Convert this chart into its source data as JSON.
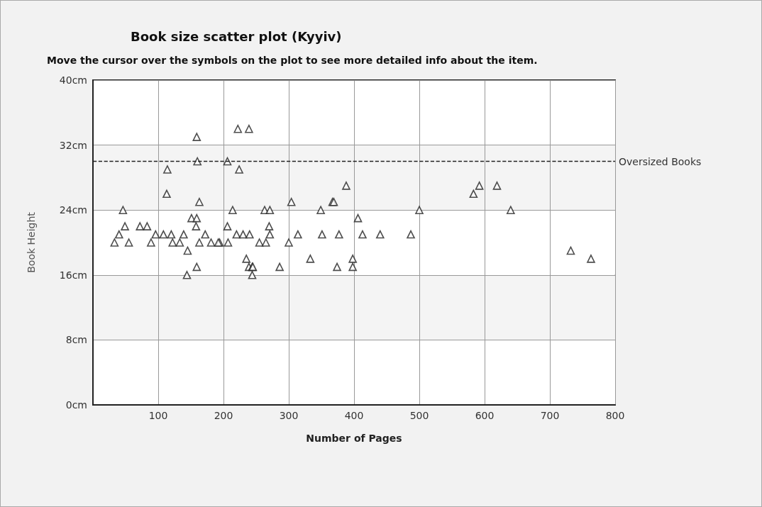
{
  "chart_data": {
    "type": "scatter",
    "title": "Book size scatter plot (Kyyiv)",
    "subtitle": "Move the cursor over the symbols on the plot to see more detailed info about the item.",
    "xlabel": "Number of Pages",
    "ylabel": "Book Height",
    "x": [
      33,
      40,
      46,
      49,
      55,
      72,
      83,
      89,
      96,
      108,
      113,
      114,
      120,
      122,
      133,
      139,
      144,
      145,
      151,
      159,
      158,
      159,
      160,
      163,
      159,
      163,
      172,
      181,
      194,
      192,
      207,
      206,
      206,
      214,
      220,
      222,
      224,
      230,
      235,
      239,
      239,
      240,
      244,
      244,
      245,
      255,
      263,
      265,
      270,
      271,
      271,
      286,
      300,
      304,
      314,
      333,
      349,
      351,
      367,
      369,
      374,
      377,
      388,
      398,
      398,
      406,
      413,
      440,
      487,
      500,
      583,
      592,
      619,
      640,
      732,
      763
    ],
    "values": [
      20,
      21,
      24,
      22,
      20,
      22,
      22,
      20,
      21,
      21,
      26,
      29,
      21,
      20,
      20,
      21,
      16,
      19,
      23,
      23,
      22,
      33,
      30,
      20,
      17,
      25,
      21,
      20,
      20,
      20,
      20,
      30,
      22,
      24,
      21,
      34,
      29,
      21,
      18,
      34,
      17,
      21,
      16,
      17,
      17,
      20,
      24,
      20,
      22,
      24,
      21,
      17,
      20,
      25,
      21,
      18,
      24,
      21,
      25,
      25,
      17,
      21,
      27,
      18,
      17,
      23,
      21,
      21,
      21,
      24,
      26,
      27,
      27,
      24,
      19,
      18
    ],
    "color": "#222222",
    "marker": "triangle",
    "xlim": [
      0,
      800
    ],
    "xticks": [
      100,
      200,
      300,
      400,
      500,
      600,
      700,
      800
    ],
    "ylim": [
      0,
      40
    ],
    "yticks": [
      {
        "value": 0,
        "label": "0cm"
      },
      {
        "value": 8,
        "label": "8cm"
      },
      {
        "value": 16,
        "label": "16cm"
      },
      {
        "value": 24,
        "label": "24cm"
      },
      {
        "value": 32,
        "label": "32cm"
      },
      {
        "value": 40,
        "label": "40cm"
      }
    ],
    "grid": true,
    "ref_lines": [
      {
        "axis": "y",
        "value": 30,
        "label": "Oversized Books",
        "color": "#222222",
        "line_style": "dashed"
      }
    ]
  }
}
